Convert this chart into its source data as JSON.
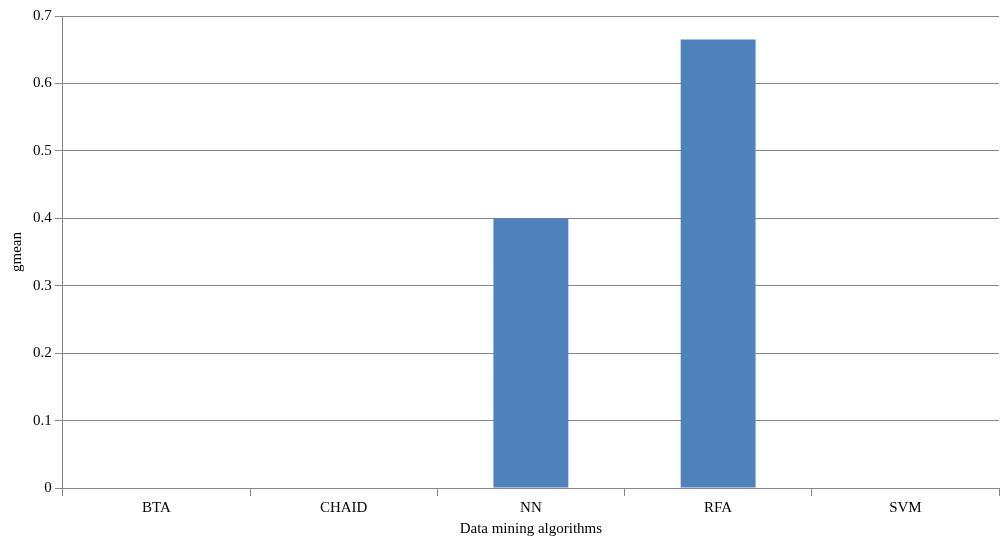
{
  "chart_data": {
    "type": "bar",
    "xlabel": "Data mining algorithms",
    "ylabel": "gmean",
    "categories": [
      "BTA",
      "CHAID",
      "NN",
      "RFA",
      "SVM"
    ],
    "values": [
      0,
      0,
      0.4,
      0.665,
      0
    ],
    "color": "#4f81bd",
    "ylim": [
      0,
      0.7
    ],
    "yticks": [
      0,
      0.1,
      0.2,
      0.3,
      0.4,
      0.5,
      0.6,
      0.7
    ],
    "grid": "y",
    "legend": false
  }
}
